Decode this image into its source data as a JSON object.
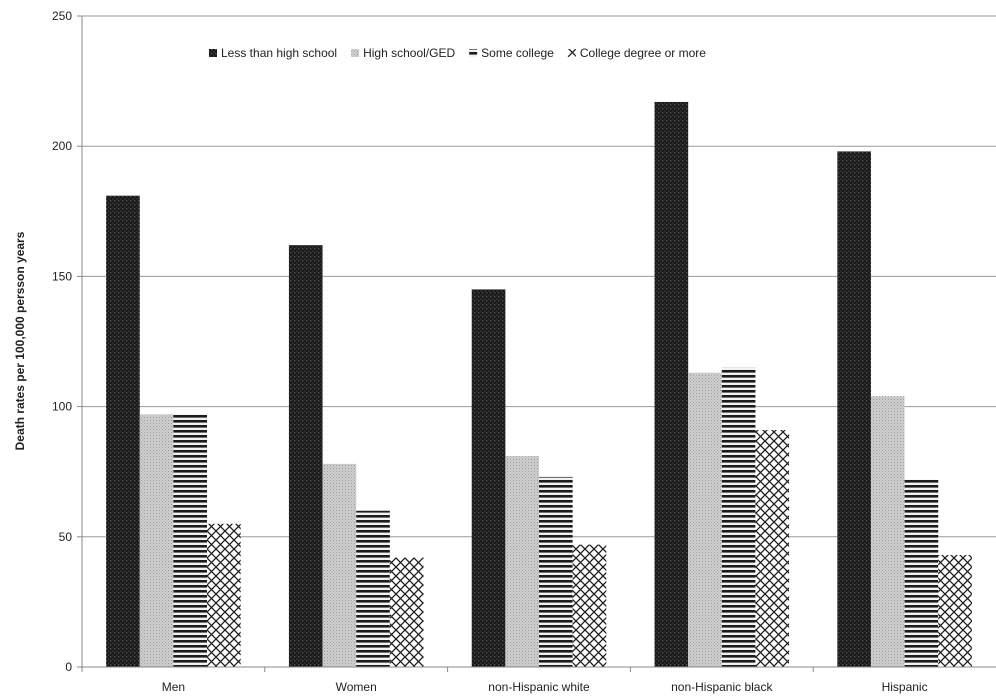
{
  "chart_data": {
    "type": "bar",
    "title": "",
    "xlabel": "",
    "ylabel": "Death rates per 100,000 persson years",
    "ylim": [
      0,
      250
    ],
    "yticks": [
      0,
      50,
      100,
      150,
      200,
      250
    ],
    "grid": true,
    "legend_position": "top",
    "categories": [
      "Men",
      "Women",
      "non-Hispanic white",
      "non-Hispanic black",
      "Hispanic"
    ],
    "series": [
      {
        "name": "Less than high school",
        "pattern": "dark-checker",
        "values": [
          181,
          162,
          145,
          217,
          198
        ]
      },
      {
        "name": "High school/GED",
        "pattern": "light-dots",
        "values": [
          97,
          78,
          81,
          113,
          104
        ]
      },
      {
        "name": "Some college",
        "pattern": "horizontal-lines",
        "values": [
          97,
          60,
          73,
          115,
          72
        ]
      },
      {
        "name": "College degree or more",
        "pattern": "crosshatch",
        "values": [
          55,
          42,
          47,
          91,
          43
        ]
      }
    ]
  }
}
